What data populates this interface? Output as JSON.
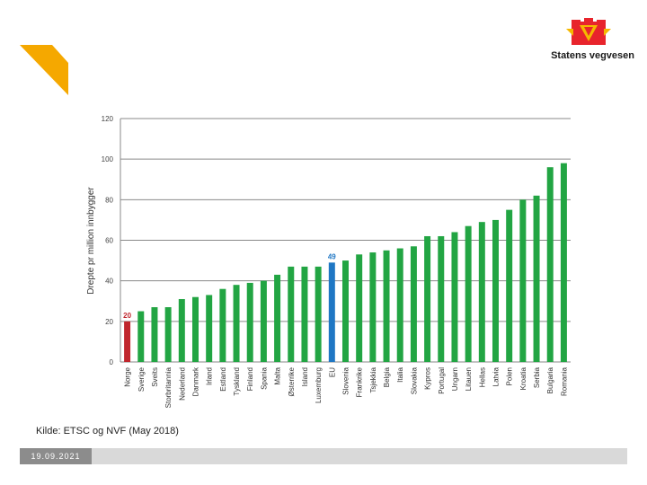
{
  "logo": {
    "text": "Statens vegvesen",
    "icon": "road-authority-emblem"
  },
  "source": "Kilde: ETSC og NVF (May 2018)",
  "footer": {
    "date": "19.09.2021"
  },
  "colors": {
    "default": "#22a543",
    "highlight_norway": "#c0262d",
    "highlight_eu": "#1f77c4",
    "accent": "#f5a800"
  },
  "chart_data": {
    "type": "bar",
    "title": "",
    "xlabel": "",
    "ylabel": "Drepte pr million innbygger",
    "ylim": [
      0,
      120
    ],
    "yticks": [
      0,
      20,
      40,
      60,
      80,
      100,
      120
    ],
    "grid": true,
    "categories": [
      "Norge",
      "Sverige",
      "Sveits",
      "Storbritannia",
      "Nederland",
      "Danmark",
      "Irland",
      "Estland",
      "Tyskland",
      "Finland",
      "Spania",
      "Malta",
      "Østerrike",
      "Island",
      "Luxemburg",
      "EU",
      "Slovenia",
      "Frankrike",
      "Tsjekkia",
      "Belgia",
      "Italia",
      "Slovakia",
      "Kypros",
      "Portugal",
      "Ungarn",
      "Litauen",
      "Hellas",
      "Latvia",
      "Polen",
      "Kroatia",
      "Serbia",
      "Bulgaria",
      "Romania"
    ],
    "values": [
      20,
      25,
      27,
      27,
      31,
      32,
      33,
      36,
      38,
      39,
      40,
      43,
      47,
      47,
      47,
      49,
      50,
      53,
      54,
      55,
      56,
      57,
      62,
      62,
      64,
      67,
      69,
      70,
      75,
      80,
      82,
      96,
      98
    ],
    "highlights": [
      {
        "category": "Norge",
        "color": "#c0262d",
        "label": "20"
      },
      {
        "category": "EU",
        "color": "#1f77c4",
        "label": "49"
      }
    ]
  }
}
